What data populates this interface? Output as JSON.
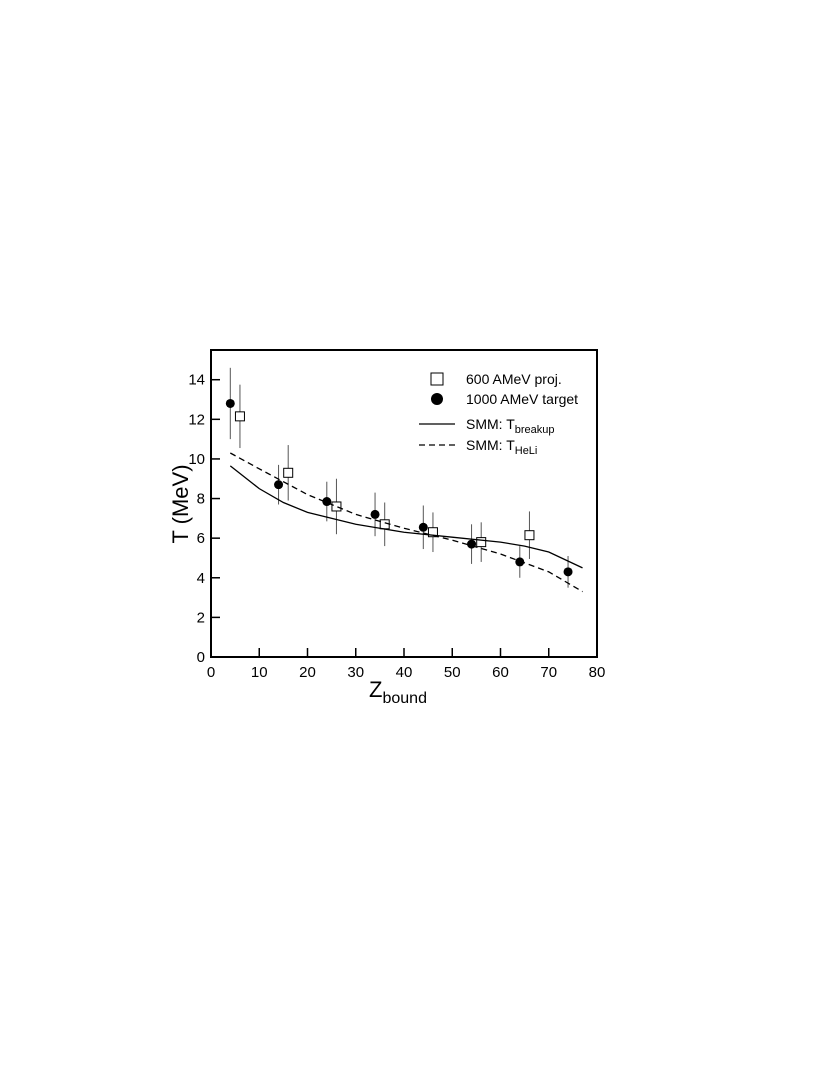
{
  "chart_data": {
    "type": "scatter",
    "xlabel": "Z",
    "xlabel_sub": "bound",
    "ylabel": "T (MeV)",
    "xlim": [
      0,
      80
    ],
    "ylim": [
      0,
      15.5
    ],
    "xticks": [
      0,
      10,
      20,
      30,
      40,
      50,
      60,
      70,
      80
    ],
    "yticks": [
      0,
      2,
      4,
      6,
      8,
      10,
      12,
      14
    ],
    "series": [
      {
        "name": "600 AMeV proj.",
        "marker": "square",
        "color": "#000000",
        "x": [
          6,
          16,
          26,
          36,
          46,
          56,
          66
        ],
        "values": [
          12.15,
          9.3,
          7.6,
          6.7,
          6.3,
          5.8,
          6.15
        ],
        "errors": [
          1.6,
          1.4,
          1.4,
          1.1,
          1.0,
          1.0,
          1.2
        ]
      },
      {
        "name": "1000 AMeV target",
        "marker": "circle",
        "color": "#000000",
        "x": [
          4,
          14,
          24,
          34,
          44,
          54,
          64,
          74
        ],
        "values": [
          12.8,
          8.7,
          7.85,
          7.2,
          6.55,
          5.7,
          4.8,
          4.3
        ],
        "errors": [
          1.8,
          1.0,
          1.0,
          1.1,
          1.1,
          1.0,
          0.8,
          0.8
        ]
      },
      {
        "name": "SMM: T",
        "name_sub": "breakup",
        "marker": "line",
        "dash": "solid",
        "color": "#000000",
        "x": [
          4,
          10,
          15,
          20,
          30,
          40,
          50,
          60,
          65,
          70,
          77
        ],
        "values": [
          9.65,
          8.5,
          7.8,
          7.3,
          6.7,
          6.3,
          6.05,
          5.8,
          5.6,
          5.3,
          4.5
        ]
      },
      {
        "name": "SMM: T",
        "name_sub": "HeLi",
        "marker": "line",
        "dash": "dashed",
        "color": "#000000",
        "x": [
          4,
          10,
          20,
          30,
          40,
          50,
          60,
          70,
          77
        ],
        "values": [
          10.3,
          9.5,
          8.2,
          7.2,
          6.5,
          5.9,
          5.2,
          4.3,
          3.3
        ]
      }
    ]
  }
}
